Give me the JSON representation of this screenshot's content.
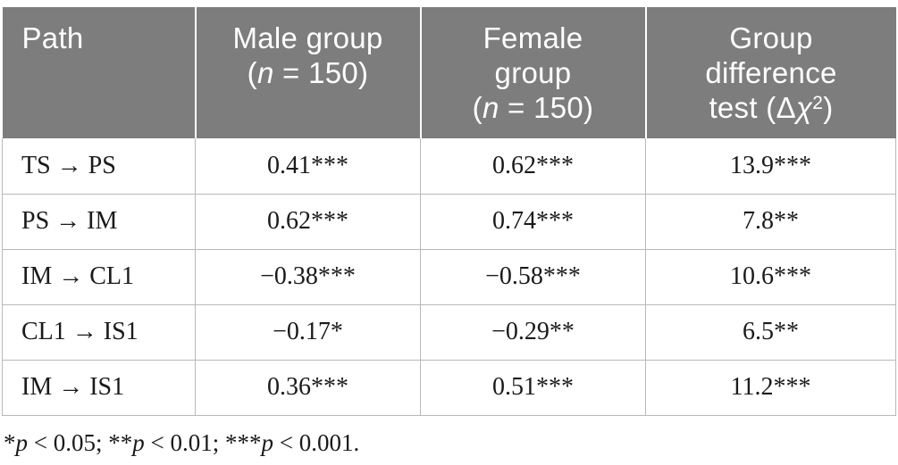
{
  "colors": {
    "header_bg": "#7d7d7d",
    "header_text": "#ffffff",
    "body_text": "#1a1a1a",
    "grid_border": "#b9b9b9"
  },
  "header": {
    "path": "Path",
    "male_line1": "Male group",
    "female_line1": "Female",
    "female_line2": "group",
    "diff_line1": "Group",
    "diff_line2": "difference",
    "diff_line3_prefix": "test (Δ",
    "chi": "χ",
    "chi_sup": "2",
    "diff_line3_suffix": ")",
    "sample_open": "(",
    "sample_n": "n",
    "sample_rest": " = 150)"
  },
  "rows": [
    {
      "path": "TS → PS",
      "male": "0.41***",
      "female": "0.62***",
      "diff": "13.9***"
    },
    {
      "path": "PS → IM",
      "male": "0.62***",
      "female": "0.74***",
      "diff": "7.8**"
    },
    {
      "path": "IM → CL1",
      "male": "−0.38***",
      "female": "−0.58***",
      "diff": "10.6***"
    },
    {
      "path": "CL1 → IS1",
      "male": "−0.17*",
      "female": "−0.29**",
      "diff": "6.5**"
    },
    {
      "path": "IM → IS1",
      "male": "0.36***",
      "female": "0.51***",
      "diff": "11.2***"
    }
  ],
  "footnote": {
    "star1": "*",
    "p1": "p",
    "text1": " < 0.05; ",
    "star2": "**",
    "p2": "p",
    "text2": " < 0.01; ",
    "star3": "***",
    "p3": "p",
    "text3": " < 0.001."
  }
}
